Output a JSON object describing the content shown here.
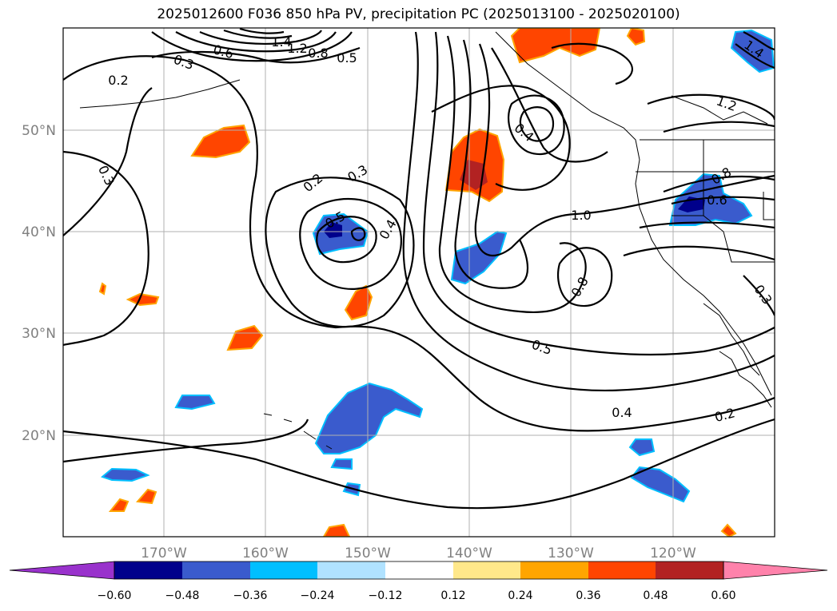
{
  "title": "2025012600 F036 850 hPa PV, precipitation PC (2025013100 - 2025020100)",
  "map": {
    "lon_labels": [
      "170°W",
      "160°W",
      "150°W",
      "140°W",
      "130°W",
      "120°W"
    ],
    "lat_labels": [
      "50°N",
      "40°N",
      "30°N",
      "20°N"
    ],
    "contour_labels": [
      "0.2",
      "0.3",
      "0.6",
      "1.4",
      "1.2",
      "0.8",
      "0.5",
      "0.4",
      "1.0",
      "0.3",
      "0.2",
      "0.3",
      "0.4",
      "0.5",
      "0.8",
      "0.6",
      "0.8",
      "1.2",
      "1.4",
      "0.3",
      "0.5",
      "0.4",
      "0.2"
    ]
  },
  "colorbar": {
    "ticks": [
      "−0.60",
      "−0.48",
      "−0.36",
      "−0.24",
      "−0.12",
      "0.12",
      "0.24",
      "0.36",
      "0.48",
      "0.60"
    ],
    "colors": [
      "#9932cc",
      "#00008b",
      "#3a5bcd",
      "#00bfff",
      "#b0e2ff",
      "#ffffff",
      "#ffe88a",
      "#ffa500",
      "#ff4500",
      "#b22222",
      "#ff82ab"
    ]
  }
}
